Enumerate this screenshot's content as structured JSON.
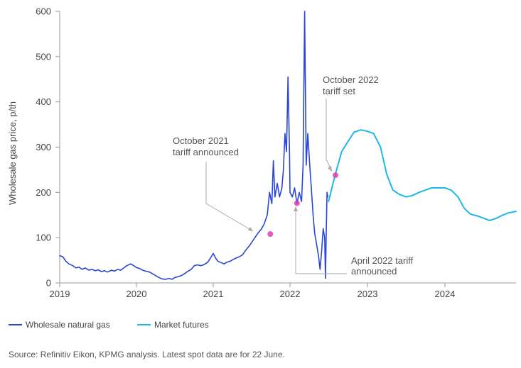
{
  "chart_data": {
    "type": "line",
    "ylabel": "Wholesale gas price, p/th",
    "xlabel": "",
    "ylim": [
      0,
      600
    ],
    "xlim": [
      2019.0,
      2024.92
    ],
    "yticks": [
      0,
      100,
      200,
      300,
      400,
      500,
      600
    ],
    "xticks": [
      "2019",
      "2020",
      "2021",
      "2022",
      "2023",
      "2024"
    ],
    "grid": false,
    "legend_position": "bottom-left",
    "series": [
      {
        "name": "Wholesale natural gas",
        "color": "#2a46d6",
        "points": [
          [
            2019.0,
            60
          ],
          [
            2019.04,
            58
          ],
          [
            2019.08,
            48
          ],
          [
            2019.12,
            42
          ],
          [
            2019.17,
            38
          ],
          [
            2019.21,
            33
          ],
          [
            2019.25,
            35
          ],
          [
            2019.29,
            30
          ],
          [
            2019.33,
            33
          ],
          [
            2019.38,
            28
          ],
          [
            2019.42,
            30
          ],
          [
            2019.46,
            27
          ],
          [
            2019.5,
            29
          ],
          [
            2019.54,
            25
          ],
          [
            2019.58,
            27
          ],
          [
            2019.62,
            24
          ],
          [
            2019.67,
            28
          ],
          [
            2019.71,
            26
          ],
          [
            2019.75,
            30
          ],
          [
            2019.79,
            28
          ],
          [
            2019.83,
            33
          ],
          [
            2019.87,
            38
          ],
          [
            2019.92,
            42
          ],
          [
            2019.96,
            38
          ],
          [
            2020.0,
            34
          ],
          [
            2020.04,
            32
          ],
          [
            2020.08,
            28
          ],
          [
            2020.12,
            26
          ],
          [
            2020.17,
            24
          ],
          [
            2020.21,
            20
          ],
          [
            2020.25,
            16
          ],
          [
            2020.29,
            12
          ],
          [
            2020.33,
            9
          ],
          [
            2020.38,
            8
          ],
          [
            2020.42,
            10
          ],
          [
            2020.46,
            8
          ],
          [
            2020.5,
            12
          ],
          [
            2020.54,
            14
          ],
          [
            2020.58,
            16
          ],
          [
            2020.62,
            20
          ],
          [
            2020.67,
            26
          ],
          [
            2020.71,
            30
          ],
          [
            2020.75,
            38
          ],
          [
            2020.79,
            40
          ],
          [
            2020.83,
            38
          ],
          [
            2020.87,
            40
          ],
          [
            2020.92,
            45
          ],
          [
            2020.96,
            55
          ],
          [
            2021.0,
            65
          ],
          [
            2021.03,
            55
          ],
          [
            2021.06,
            48
          ],
          [
            2021.1,
            45
          ],
          [
            2021.14,
            42
          ],
          [
            2021.18,
            46
          ],
          [
            2021.22,
            48
          ],
          [
            2021.26,
            52
          ],
          [
            2021.3,
            55
          ],
          [
            2021.34,
            58
          ],
          [
            2021.38,
            62
          ],
          [
            2021.42,
            72
          ],
          [
            2021.46,
            80
          ],
          [
            2021.5,
            90
          ],
          [
            2021.54,
            100
          ],
          [
            2021.58,
            110
          ],
          [
            2021.62,
            118
          ],
          [
            2021.66,
            130
          ],
          [
            2021.7,
            150
          ],
          [
            2021.73,
            200
          ],
          [
            2021.76,
            175
          ],
          [
            2021.78,
            270
          ],
          [
            2021.8,
            190
          ],
          [
            2021.83,
            220
          ],
          [
            2021.86,
            190
          ],
          [
            2021.89,
            210
          ],
          [
            2021.91,
            250
          ],
          [
            2021.93,
            330
          ],
          [
            2021.95,
            290
          ],
          [
            2021.97,
            455
          ],
          [
            2021.99,
            280
          ],
          [
            2022.0,
            200
          ],
          [
            2022.03,
            190
          ],
          [
            2022.06,
            210
          ],
          [
            2022.09,
            175
          ],
          [
            2022.12,
            200
          ],
          [
            2022.15,
            180
          ],
          [
            2022.17,
            260
          ],
          [
            2022.19,
            600
          ],
          [
            2022.21,
            260
          ],
          [
            2022.23,
            330
          ],
          [
            2022.26,
            250
          ],
          [
            2022.28,
            200
          ],
          [
            2022.3,
            150
          ],
          [
            2022.32,
            110
          ],
          [
            2022.35,
            80
          ],
          [
            2022.37,
            60
          ],
          [
            2022.39,
            30
          ],
          [
            2022.41,
            70
          ],
          [
            2022.43,
            120
          ],
          [
            2022.45,
            100
          ],
          [
            2022.46,
            10
          ],
          [
            2022.47,
            110
          ],
          [
            2022.48,
            200
          ],
          [
            2022.49,
            190
          ]
        ]
      },
      {
        "name": "Market futures",
        "color": "#1eb8ea",
        "points": [
          [
            2022.5,
            180
          ],
          [
            2022.58,
            235
          ],
          [
            2022.67,
            290
          ],
          [
            2022.75,
            312
          ],
          [
            2022.83,
            333
          ],
          [
            2022.92,
            338
          ],
          [
            2023.0,
            335
          ],
          [
            2023.08,
            330
          ],
          [
            2023.17,
            300
          ],
          [
            2023.25,
            240
          ],
          [
            2023.33,
            205
          ],
          [
            2023.42,
            195
          ],
          [
            2023.5,
            190
          ],
          [
            2023.58,
            193
          ],
          [
            2023.67,
            200
          ],
          [
            2023.75,
            205
          ],
          [
            2023.83,
            210
          ],
          [
            2023.92,
            210
          ],
          [
            2024.0,
            210
          ],
          [
            2024.08,
            205
          ],
          [
            2024.17,
            190
          ],
          [
            2024.25,
            165
          ],
          [
            2024.33,
            152
          ],
          [
            2024.42,
            148
          ],
          [
            2024.5,
            143
          ],
          [
            2024.58,
            138
          ],
          [
            2024.67,
            143
          ],
          [
            2024.75,
            150
          ],
          [
            2024.83,
            155
          ],
          [
            2024.92,
            158
          ]
        ]
      }
    ],
    "markers": [
      {
        "name": "october-2021-marker",
        "x": 2021.74,
        "y": 108
      },
      {
        "name": "april-2022-marker",
        "x": 2022.09,
        "y": 176
      },
      {
        "name": "october-2022-marker",
        "x": 2022.59,
        "y": 238
      }
    ],
    "annotations": [
      {
        "lines": [
          "October 2021",
          "tariff announced"
        ]
      },
      {
        "lines": [
          "April 2022 tariff",
          "announced"
        ]
      },
      {
        "lines": [
          "October 2022",
          "tariff set"
        ]
      }
    ],
    "marker_color": "#e040b0"
  },
  "legend": {
    "items": [
      {
        "label": "Wholesale natural gas",
        "color": "#2a46d6"
      },
      {
        "label": "Market futures",
        "color": "#1eb8ea"
      }
    ]
  },
  "source": "Source: Refinitiv Eikon, KPMG analysis. Latest spot data are for 22 June."
}
